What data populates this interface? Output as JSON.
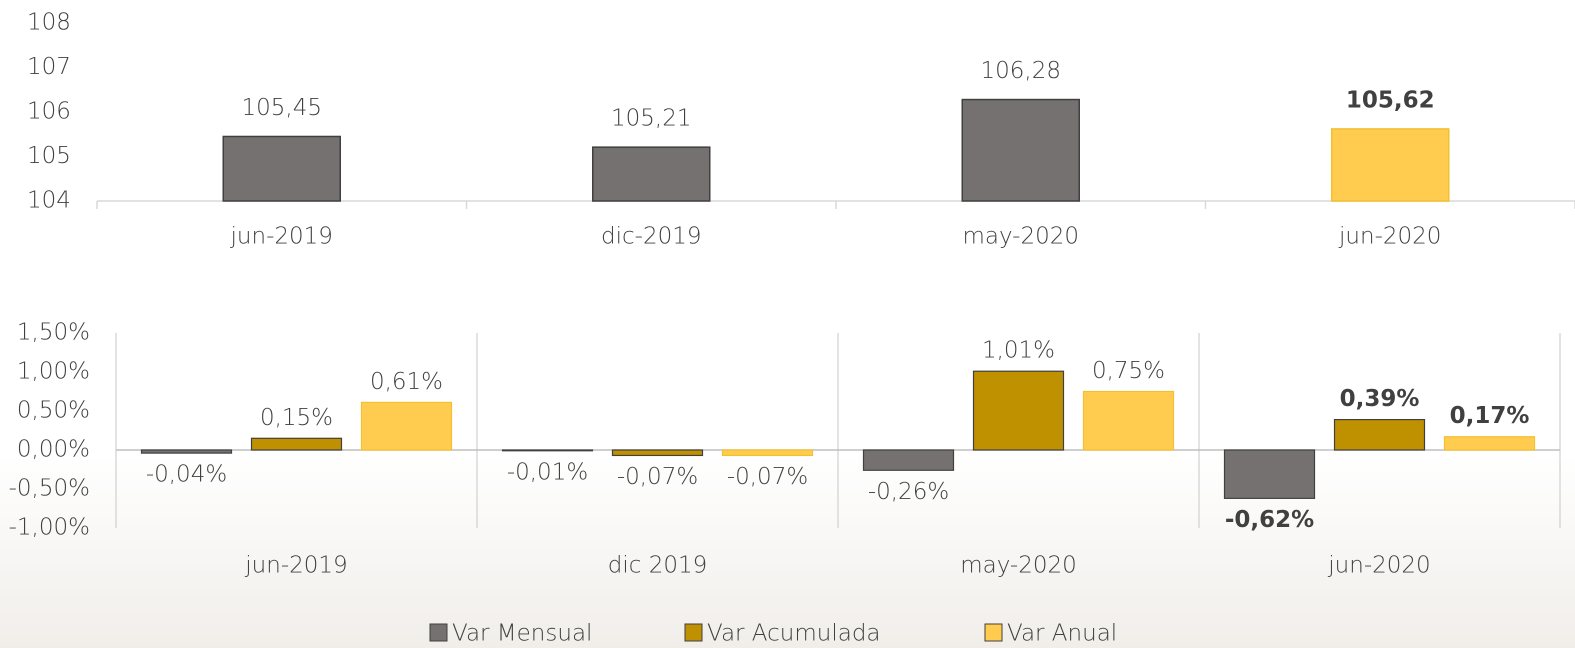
{
  "chart_data": [
    {
      "type": "bar",
      "categories": [
        "jun-2019",
        "dic-2019",
        "may-2020",
        "jun-2020"
      ],
      "values": [
        105.45,
        105.21,
        106.28,
        105.62
      ],
      "value_labels": [
        "105,45",
        "105,21",
        "106,28",
        "105,62"
      ],
      "colors": [
        "#767171",
        "#767171",
        "#767171",
        "#FFCC4F"
      ],
      "ylim": [
        104,
        108
      ],
      "yticks": [
        104,
        105,
        106,
        107,
        108
      ]
    },
    {
      "type": "grouped_bar",
      "categories": [
        "jun-2019",
        "dic 2019",
        "may-2020",
        "jun-2020"
      ],
      "series": [
        {
          "name": "Var Mensual",
          "color": "#767171",
          "values": [
            -0.04,
            -0.01,
            -0.26,
            -0.62
          ],
          "value_labels": [
            "-0,04%",
            "-0,01%",
            "-0,26%",
            "-0,62%"
          ]
        },
        {
          "name": "Var Acumulada",
          "color": "#BF9000",
          "values": [
            0.15,
            -0.07,
            1.01,
            0.39
          ],
          "value_labels": [
            "0,15%",
            "-0,07%",
            "1,01%",
            "0,39%"
          ]
        },
        {
          "name": "Var Anual",
          "color": "#FFCC4F",
          "values": [
            0.61,
            -0.07,
            0.75,
            0.17
          ],
          "value_labels": [
            "0,61%",
            "-0,07%",
            "0,75%",
            "0,17%"
          ]
        }
      ],
      "ylim": [
        -1,
        1.5
      ],
      "yticks": [
        {
          "value": -1,
          "label": "-1,00%"
        },
        {
          "value": -0.5,
          "label": "-0,50%"
        },
        {
          "value": 0,
          "label": "0,00%"
        },
        {
          "value": 0.5,
          "label": "0,50%"
        },
        {
          "value": 1,
          "label": "1,00%"
        },
        {
          "value": 1.5,
          "label": "1,50%"
        }
      ],
      "legend": "bottom"
    }
  ]
}
